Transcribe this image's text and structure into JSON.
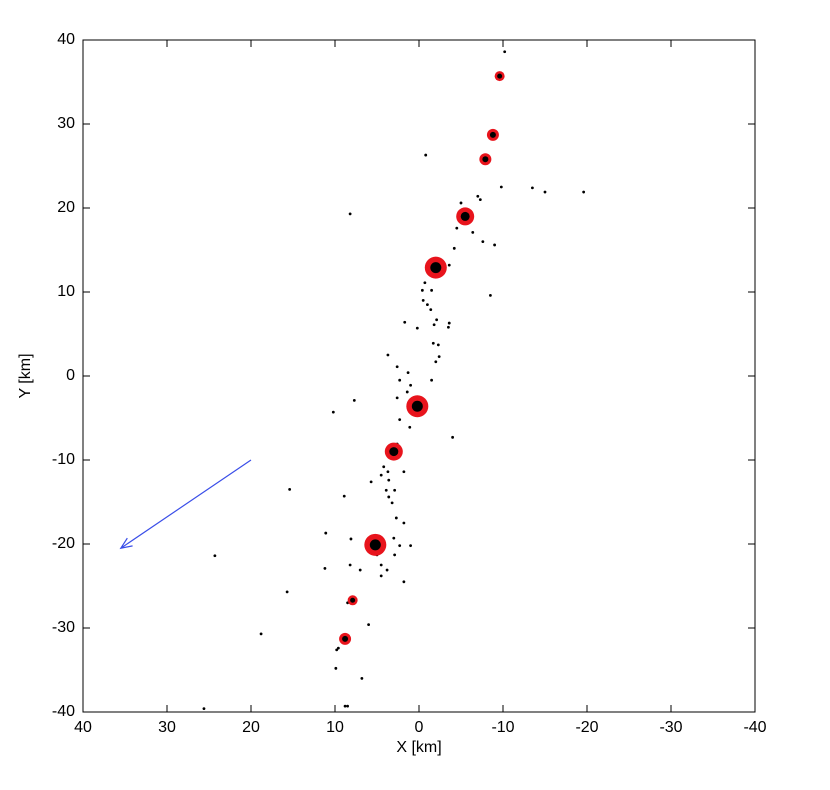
{
  "chart_data": {
    "type": "scatter",
    "xlabel": "X [km]",
    "ylabel": "Y [km]",
    "xlim": [
      40,
      -40
    ],
    "ylim": [
      -40,
      40
    ],
    "xticks": [
      40,
      30,
      20,
      10,
      0,
      -10,
      -20,
      -30,
      -40
    ],
    "yticks": [
      -40,
      -30,
      -20,
      -10,
      0,
      10,
      20,
      30,
      40
    ],
    "series": [
      {
        "color": "#000000",
        "x": [
          -10.2,
          -0.8,
          8.2,
          -9.8,
          -13.5,
          -15,
          -19.6,
          -7.0,
          -7.3,
          -5.0,
          -4.5,
          -6.4,
          -7.6,
          -9.0,
          -4.2,
          -3.6,
          -1.3,
          -2.5,
          -0.7,
          -1.5,
          -8.5,
          -0.4,
          -0.5,
          -1.0,
          1.7,
          -1.4,
          -2.1,
          0.2,
          -3.6,
          -3.5,
          -1.8,
          -1.7,
          -2.3,
          -2.4,
          3.7,
          -2.0,
          2.6,
          1.3,
          -1.5,
          2.3,
          1.0,
          2.6,
          1.4,
          7.7,
          10.2,
          2.3,
          0.1,
          -4.0,
          1.1,
          2.6,
          4.2,
          4.5,
          3.7,
          1.8,
          3.6,
          3.9,
          2.9,
          3.6,
          5.7,
          3.2,
          2.7,
          8.9,
          15.4,
          1.8,
          11.1,
          3.0,
          4.4,
          5.6,
          2.3,
          1.0,
          2.9,
          8.1,
          5.0,
          4.5,
          3.8,
          7.0,
          11.2,
          8.2,
          4.5,
          1.8,
          8.5,
          6.0,
          15.7,
          24.3,
          18.8,
          9.6,
          9.8,
          9.9,
          6.8,
          8.8,
          8.5,
          25.6
        ],
        "values": [
          38.6,
          26.3,
          19.3,
          22.5,
          22.4,
          21.9,
          21.9,
          21.4,
          21.0,
          20.6,
          17.6,
          17.1,
          16.0,
          15.6,
          15.2,
          13.2,
          12.6,
          12.0,
          11.1,
          10.2,
          9.6,
          10.2,
          9.0,
          8.5,
          6.4,
          7.9,
          6.7,
          5.7,
          6.3,
          5.8,
          6.1,
          3.9,
          3.7,
          2.3,
          2.5,
          1.7,
          1.1,
          0.4,
          -0.5,
          -0.5,
          -1.1,
          -2.6,
          -1.9,
          -2.9,
          -4.3,
          -5.2,
          -4.0,
          -7.3,
          -6.1,
          -8.1,
          -10.8,
          -11.8,
          -11.4,
          -11.4,
          -12.4,
          -13.6,
          -13.6,
          -14.4,
          -12.6,
          -15.1,
          -16.9,
          -14.3,
          -13.5,
          -17.5,
          -18.7,
          -19.3,
          -20.1,
          -20.5,
          -20.2,
          -20.2,
          -21.3,
          -19.4,
          -21.3,
          -22.5,
          -23.1,
          -23.1,
          -22.9,
          -22.5,
          -23.8,
          -24.5,
          -27.0,
          -29.6,
          -25.7,
          -21.4,
          -30.7,
          -32.4,
          -32.6,
          -34.8,
          -36.0,
          -39.3,
          -39.3,
          -39.6
        ]
      },
      {
        "color": "#e8141c",
        "x": [
          -9.6,
          -8.8,
          -7.9,
          -5.5,
          -2.0,
          0.2,
          3.0,
          5.2,
          7.9,
          8.8
        ],
        "values": [
          35.7,
          28.7,
          25.8,
          19.0,
          12.9,
          -3.6,
          -9.0,
          -20.1,
          -26.7,
          -31.3
        ],
        "sizes": [
          5,
          6,
          6,
          9,
          11,
          11,
          9,
          11,
          5,
          6
        ]
      }
    ],
    "arrow": {
      "x": [
        20,
        35.5
      ],
      "y": [
        -10,
        -20.5
      ],
      "color": "#3a4ee8"
    }
  }
}
